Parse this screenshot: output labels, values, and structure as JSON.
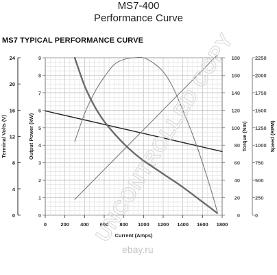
{
  "header": {
    "model": "MS7-400",
    "subtitle": "Performance Curve",
    "section_title": "MS7 TYPICAL PERFORMANCE CURVE"
  },
  "watermark": {
    "text": "UNCONTROLLED COPY",
    "color": "#d8d8d8"
  },
  "brand": {
    "text": "ebay.ru"
  },
  "chart_data": {
    "type": "line",
    "title": "",
    "xlabel": "Current (Amps)",
    "xlim": [
      0,
      1800
    ],
    "x_ticks": [
      0,
      200,
      400,
      600,
      800,
      1000,
      1200,
      1400,
      1600,
      1800
    ],
    "grid": true,
    "axes": {
      "voltage": {
        "label": "Terminal Volts (V)",
        "range": [
          0,
          24
        ],
        "ticks": [
          0,
          4,
          8,
          12,
          16,
          20,
          24
        ],
        "side": "left-outer"
      },
      "power": {
        "label": "Output Power (kW)",
        "range": [
          0,
          9
        ],
        "ticks": [
          0,
          1,
          2,
          3,
          4,
          5,
          6,
          7,
          8,
          9
        ],
        "side": "left-inner"
      },
      "torque": {
        "label": "Torque (Nm)",
        "range": [
          0,
          180
        ],
        "ticks": [
          0,
          20,
          40,
          60,
          80,
          100,
          120,
          140,
          160,
          180
        ],
        "side": "right-inner"
      },
      "speed": {
        "label": "Speed (RPM)",
        "range": [
          0,
          2250
        ],
        "ticks": [
          0,
          250,
          500,
          750,
          1000,
          1250,
          1500,
          1750,
          2000,
          2250
        ],
        "side": "right-outer"
      }
    },
    "series": [
      {
        "name": "",
        "axis": "voltage",
        "color": "#222222",
        "x": [
          0,
          1800
        ],
        "y": [
          15.9,
          9.7
        ]
      },
      {
        "name": "",
        "axis": "power",
        "color": "#7a7a7a",
        "x": [
          300,
          400,
          500,
          600,
          700,
          800,
          900,
          1000,
          1100,
          1200,
          1300,
          1400,
          1500,
          1600,
          1700,
          1750
        ],
        "y": [
          4.2,
          5.8,
          7.0,
          7.9,
          8.6,
          8.9,
          9.0,
          9.0,
          8.7,
          8.2,
          7.3,
          6.0,
          4.6,
          3.0,
          1.2,
          0.2
        ]
      },
      {
        "name": "",
        "axis": "torque",
        "color": "#7a7a7a",
        "x": [
          300,
          1750
        ],
        "y": [
          18,
          183
        ]
      },
      {
        "name": "",
        "axis": "speed",
        "color": "#6a6a6a",
        "x": [
          300,
          400,
          500,
          600,
          700,
          800,
          900,
          1000,
          1200,
          1400,
          1600,
          1750
        ],
        "y": [
          2250,
          1850,
          1560,
          1340,
          1170,
          1020,
          890,
          780,
          590,
          400,
          190,
          30
        ]
      }
    ]
  }
}
